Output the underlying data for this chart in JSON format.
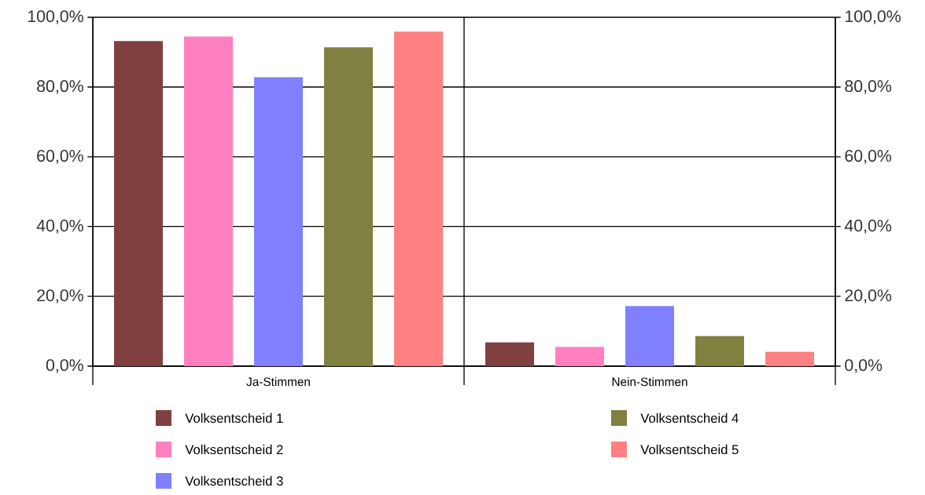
{
  "chart_data": {
    "type": "bar",
    "categories": [
      "Ja-Stimmen",
      "Nein-Stimmen"
    ],
    "series": [
      {
        "name": "Volksentscheid 1",
        "color": "#804040",
        "values": [
          93.2,
          6.8
        ]
      },
      {
        "name": "Volksentscheid 2",
        "color": "#ff80c0",
        "values": [
          94.5,
          5.5
        ]
      },
      {
        "name": "Volksentscheid 3",
        "color": "#8080ff",
        "values": [
          82.8,
          17.2
        ]
      },
      {
        "name": "Volksentscheid 4",
        "color": "#808040",
        "values": [
          91.4,
          8.6
        ]
      },
      {
        "name": "Volksentscheid 5",
        "color": "#ff8080",
        "values": [
          95.9,
          4.1
        ]
      }
    ],
    "ylim": [
      0,
      100
    ],
    "yticks": [
      {
        "value": 0,
        "label": "0,0%"
      },
      {
        "value": 20,
        "label": "20,0%"
      },
      {
        "value": 40,
        "label": "40,0%"
      },
      {
        "value": 60,
        "label": "60,0%"
      },
      {
        "value": 80,
        "label": "80,0%"
      },
      {
        "value": 100,
        "label": "100,0%"
      }
    ],
    "y2lim": [
      0,
      100
    ],
    "y2ticks": [
      {
        "value": 0,
        "label": "0,0%"
      },
      {
        "value": 20,
        "label": "20,0%"
      },
      {
        "value": 40,
        "label": "40,0%"
      },
      {
        "value": 60,
        "label": "60,0%"
      },
      {
        "value": 80,
        "label": "80,0%"
      },
      {
        "value": 100,
        "label": "100,0%"
      }
    ],
    "grid": true,
    "legend": "bottom"
  }
}
